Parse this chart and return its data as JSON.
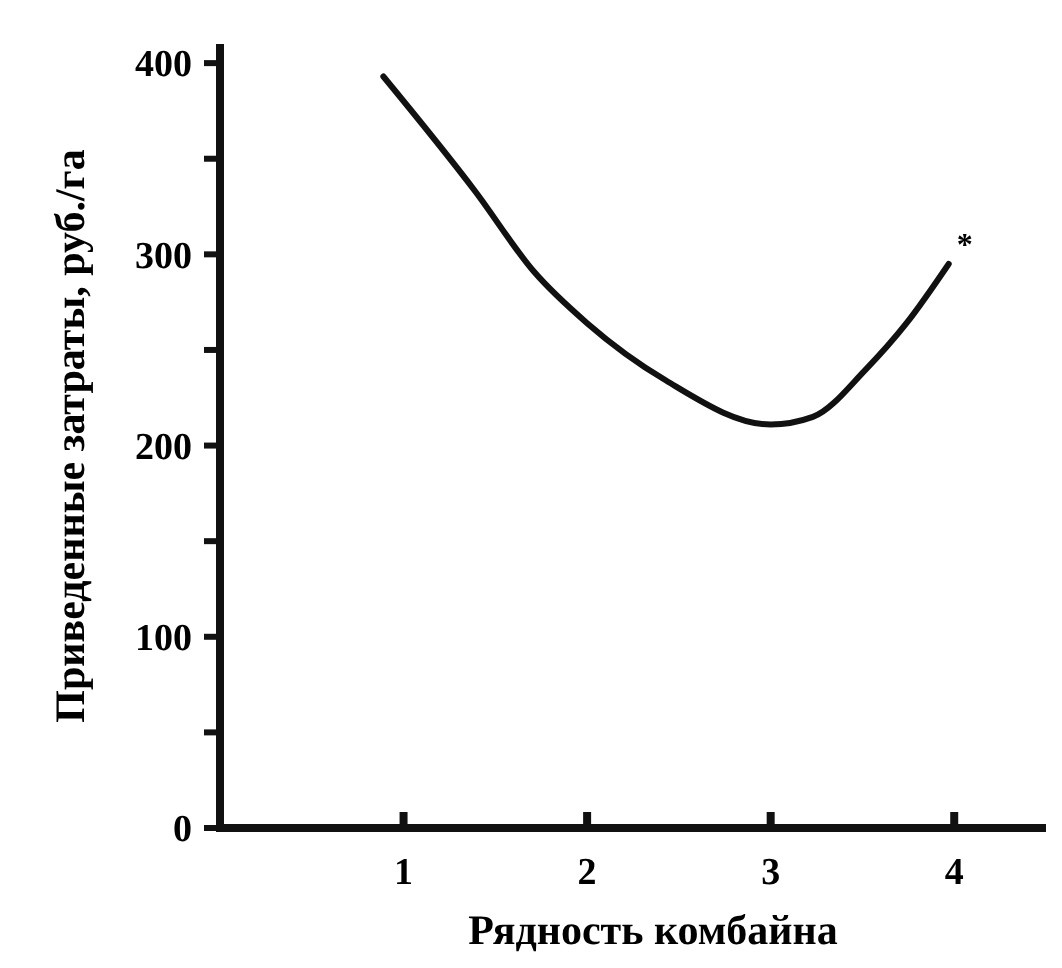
{
  "chart_data": {
    "type": "line",
    "xlabel": "Рядность комбайна",
    "ylabel": "Приведенные затраты, руб./га",
    "x": [
      0.89,
      1.39,
      1.71,
      2,
      2.43,
      3,
      3.23,
      3.52,
      3.74,
      3.97
    ],
    "series": [
      {
        "color": "#111111",
        "values": [
          393,
          333,
          291,
          264,
          234,
          211,
          215,
          240,
          264,
          295
        ]
      }
    ],
    "xlim": [
      0,
      4.5
    ],
    "xticks": [
      1,
      2,
      3,
      4
    ],
    "ylim": [
      0,
      410
    ],
    "yticks": [
      0,
      {
        "value": 50,
        "label": null
      },
      100,
      {
        "value": 150,
        "label": null
      },
      200,
      {
        "value": 250,
        "label": null
      },
      300,
      {
        "value": 350,
        "label": null
      },
      400
    ],
    "annotations": [
      "*"
    ],
    "marker": "none",
    "line_style": "solid",
    "grid": false
  }
}
